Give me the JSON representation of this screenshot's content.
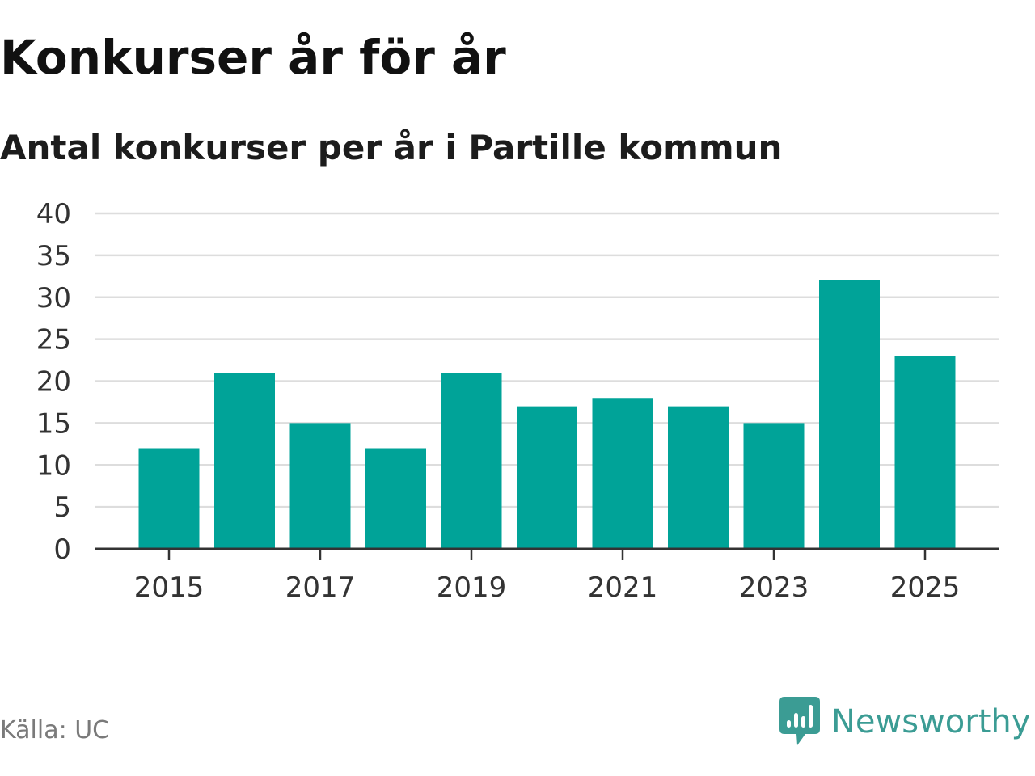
{
  "header": {
    "title": "Konkurser år för år",
    "subtitle": "Antal konkurser per år i Partille kommun"
  },
  "chart_data": {
    "type": "bar",
    "title": "Konkurser år för år",
    "subtitle": "Antal konkurser per år i Partille kommun",
    "categories": [
      "2015",
      "2016",
      "2017",
      "2018",
      "2019",
      "2020",
      "2021",
      "2022",
      "2023",
      "2024",
      "2025"
    ],
    "values": [
      12,
      21,
      15,
      12,
      21,
      17,
      18,
      17,
      15,
      32,
      23
    ],
    "y_ticks": [
      0,
      5,
      10,
      15,
      20,
      25,
      30,
      35,
      40
    ],
    "x_tick_labels": [
      "2015",
      "2017",
      "2019",
      "2021",
      "2023",
      "2025"
    ],
    "xlabel": "",
    "ylabel": "",
    "ylim": [
      0,
      40
    ],
    "grid": true,
    "bar_color": "#00a398"
  },
  "footer": {
    "source": "Källa: UC",
    "brand": "Newsworthy",
    "brand_icon": "newsworthy-logo-icon",
    "brand_color": "#3b9c94"
  }
}
